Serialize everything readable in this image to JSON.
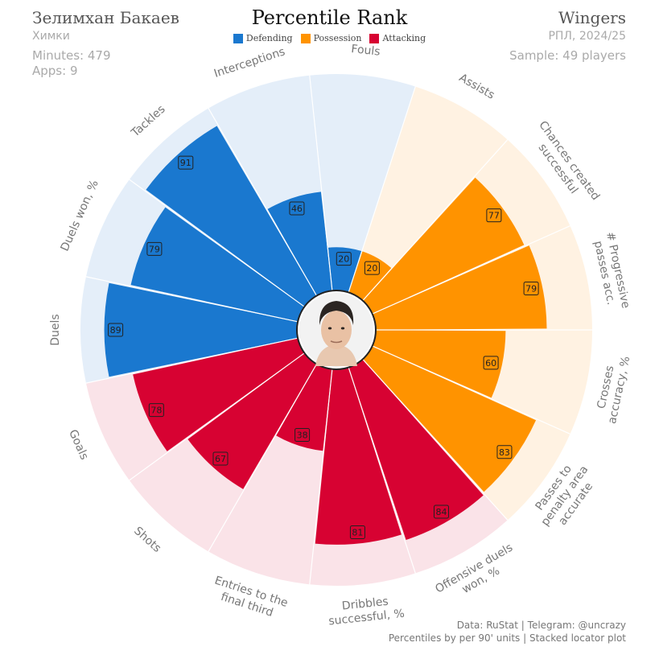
{
  "header": {
    "player_name": "Зелимхан Бакаев",
    "club": "Химки",
    "minutes": "Minutes: 479",
    "apps": "Apps: 9",
    "title": "Percentile Rank",
    "position": "Wingers",
    "season": "РПЛ, 2024/25",
    "sample": "Sample: 49 players"
  },
  "legend": [
    {
      "label": "Defending",
      "color": "#1a78cf"
    },
    {
      "label": "Possession",
      "color": "#ff9300"
    },
    {
      "label": "Attacking",
      "color": "#d70232"
    }
  ],
  "footer": {
    "source": "Data: RuStat | Telegram: @uncrazy",
    "note": "Percentiles by per 90' units | Stacked locator plot"
  },
  "chart_data": {
    "type": "radial-bar",
    "title": "Percentile Rank",
    "rlim": [
      0,
      100
    ],
    "categories": [
      "Duels",
      "Duels won, %",
      "Tackles",
      "Interceptions",
      "Fouls",
      "Assists",
      "Chances created successful",
      "# Progressive passes acc.",
      "Crosses accuracy, %",
      "Passes to penalty area accurate",
      "Offensive duels won, %",
      "Dribbles successful, %",
      "Entries to the final third",
      "Shots",
      "Goals"
    ],
    "label_lines": [
      [
        "Duels"
      ],
      [
        "Duels won, %"
      ],
      [
        "Tackles"
      ],
      [
        "Interceptions"
      ],
      [
        "Fouls"
      ],
      [
        "Assists"
      ],
      [
        "Chances created",
        "successful"
      ],
      [
        "# Progressive",
        "passes acc."
      ],
      [
        "Crosses",
        "accuracy, %"
      ],
      [
        "Passes to",
        "penalty area",
        "accurate"
      ],
      [
        "Offensive duels",
        "won, %"
      ],
      [
        "Dribbles",
        "successful, %"
      ],
      [
        "Entries to the",
        "final third"
      ],
      [
        "Shots"
      ],
      [
        "Goals"
      ]
    ],
    "values": [
      89,
      79,
      91,
      46,
      20,
      20,
      77,
      79,
      60,
      83,
      84,
      81,
      38,
      67,
      78
    ],
    "groups": [
      "Defending",
      "Defending",
      "Defending",
      "Defending",
      "Defending",
      "Possession",
      "Possession",
      "Possession",
      "Possession",
      "Possession",
      "Attacking",
      "Attacking",
      "Attacking",
      "Attacking",
      "Attacking"
    ],
    "colors": {
      "Defending": {
        "bar": "#1a78cf",
        "bg": "#e4eef9"
      },
      "Possession": {
        "bar": "#ff9300",
        "bg": "#fff2e2"
      },
      "Attacking": {
        "bar": "#d70232",
        "bg": "#fae3e8"
      }
    }
  }
}
